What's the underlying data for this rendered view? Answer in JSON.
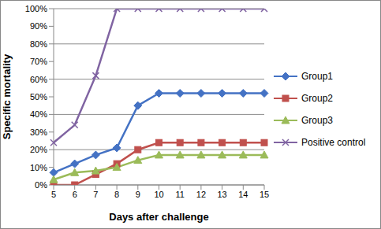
{
  "chart_data": {
    "type": "line",
    "x_label": "Days after challenge",
    "y_label": "Specific mortality",
    "categories": [
      "5",
      "6",
      "7",
      "8",
      "9",
      "10",
      "11",
      "12",
      "13",
      "14",
      "15"
    ],
    "series": [
      {
        "name": "Group1",
        "color": "#4472c4",
        "marker": "diamond",
        "values": [
          7,
          12,
          17,
          21,
          45,
          52,
          52,
          52,
          52,
          52,
          52
        ]
      },
      {
        "name": "Group2",
        "color": "#c0504d",
        "marker": "square",
        "values": [
          0,
          0,
          6,
          12,
          20,
          24,
          24,
          24,
          24,
          24,
          24
        ]
      },
      {
        "name": "Group3",
        "color": "#9bbb59",
        "marker": "triangle",
        "values": [
          3,
          7,
          8,
          10,
          14,
          17,
          17,
          17,
          17,
          17,
          17
        ]
      },
      {
        "name": "Positive control",
        "color": "#8064a2",
        "marker": "x",
        "values": [
          24,
          34,
          62,
          100,
          100,
          100,
          100,
          100,
          100,
          100,
          100
        ]
      }
    ],
    "ylim": [
      0,
      100
    ],
    "yticks": [
      {
        "value": 0,
        "label": "0%"
      },
      {
        "value": 10,
        "label": "10%"
      },
      {
        "value": 20,
        "label": "20%"
      },
      {
        "value": 30,
        "label": "30%"
      },
      {
        "value": 40,
        "label": "40%"
      },
      {
        "value": 50,
        "label": "50%"
      },
      {
        "value": 60,
        "label": "60%"
      },
      {
        "value": 70,
        "label": "70%"
      },
      {
        "value": 80,
        "label": "80%"
      },
      {
        "value": 90,
        "label": "90%"
      },
      {
        "value": 100,
        "label": "100%"
      }
    ],
    "grid": true,
    "legend": "right"
  }
}
